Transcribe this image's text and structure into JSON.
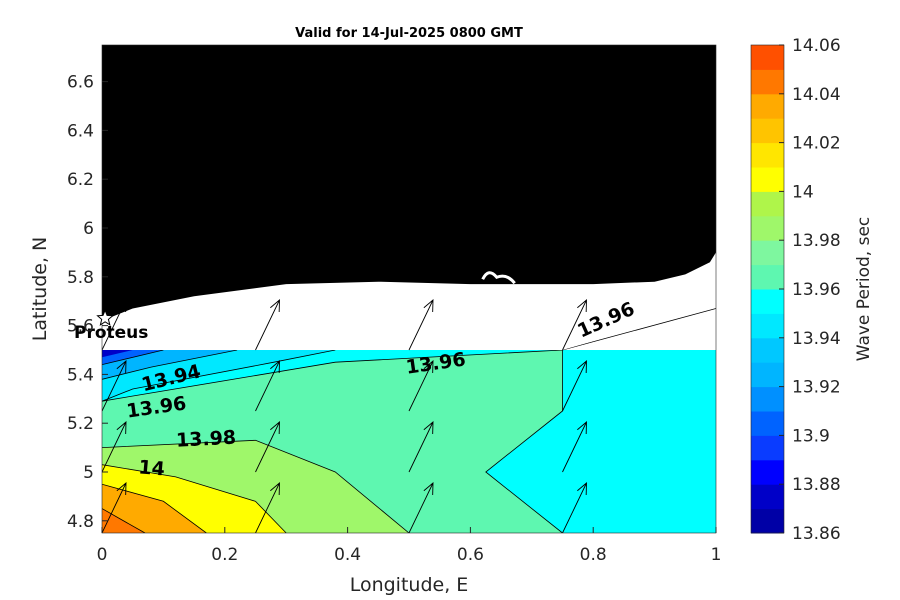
{
  "chart_data": {
    "type": "heatmap",
    "title": "Valid for 14-Jul-2025 0800 GMT",
    "xlabel": "Longitude, E",
    "ylabel": "Latitude, N",
    "xlim": [
      0,
      1
    ],
    "ylim": [
      4.75,
      6.75
    ],
    "xticks": [
      "0",
      "0.2",
      "0.4",
      "0.6",
      "0.8",
      "1"
    ],
    "yticks": [
      "4.8",
      "5",
      "5.2",
      "5.4",
      "5.6",
      "5.8",
      "6",
      "6.2",
      "6.4",
      "6.6"
    ],
    "colorbar": {
      "label": "Wave Period, sec",
      "ticks": [
        "13.86",
        "13.88",
        "13.9",
        "13.92",
        "13.94",
        "13.96",
        "13.98",
        "14",
        "14.02",
        "14.04",
        "14.06"
      ],
      "levels": [
        {
          "from": 13.86,
          "to": 13.87,
          "color": "#0000a6"
        },
        {
          "from": 13.87,
          "to": 13.88,
          "color": "#0000c8"
        },
        {
          "from": 13.88,
          "to": 13.89,
          "color": "#0000ff"
        },
        {
          "from": 13.89,
          "to": 13.9,
          "color": "#0a3cff"
        },
        {
          "from": 13.9,
          "to": 13.91,
          "color": "#0063ff"
        },
        {
          "from": 13.91,
          "to": 13.92,
          "color": "#0090ff"
        },
        {
          "from": 13.92,
          "to": 13.93,
          "color": "#00b5ff"
        },
        {
          "from": 13.93,
          "to": 13.94,
          "color": "#00c8ff"
        },
        {
          "from": 13.94,
          "to": 13.95,
          "color": "#00e8ff"
        },
        {
          "from": 13.95,
          "to": 13.96,
          "color": "#00ffff"
        },
        {
          "from": 13.96,
          "to": 13.97,
          "color": "#5ef7b0"
        },
        {
          "from": 13.97,
          "to": 13.98,
          "color": "#7ef79f"
        },
        {
          "from": 13.98,
          "to": 13.99,
          "color": "#9ff76a"
        },
        {
          "from": 13.99,
          "to": 14.0,
          "color": "#aff54a"
        },
        {
          "from": 14.0,
          "to": 14.01,
          "color": "#ffff00"
        },
        {
          "from": 14.01,
          "to": 14.02,
          "color": "#ffe600"
        },
        {
          "from": 14.02,
          "to": 14.03,
          "color": "#ffc400"
        },
        {
          "from": 14.03,
          "to": 14.04,
          "color": "#ffaa00"
        },
        {
          "from": 14.04,
          "to": 14.05,
          "color": "#ff7800"
        },
        {
          "from": 14.05,
          "to": 14.06,
          "color": "#ff5000"
        }
      ]
    },
    "contour_labels": [
      {
        "text": "13.94",
        "x": 0.115,
        "y": 5.36,
        "angle": -14
      },
      {
        "text": "13.96",
        "x": 0.09,
        "y": 5.24,
        "angle": -8
      },
      {
        "text": "13.98",
        "x": 0.17,
        "y": 5.11,
        "angle": -3
      },
      {
        "text": "14",
        "x": 0.08,
        "y": 4.99,
        "angle": 5
      },
      {
        "text": "13.96",
        "x": 0.545,
        "y": 5.42,
        "angle": -8
      },
      {
        "text": "13.96",
        "x": 0.825,
        "y": 5.6,
        "angle": -24
      }
    ],
    "station": {
      "name": "Proteus",
      "lon": 0.005,
      "lat": 5.63
    },
    "land_color": "#000000",
    "arrow_direction": "north-northeast"
  }
}
